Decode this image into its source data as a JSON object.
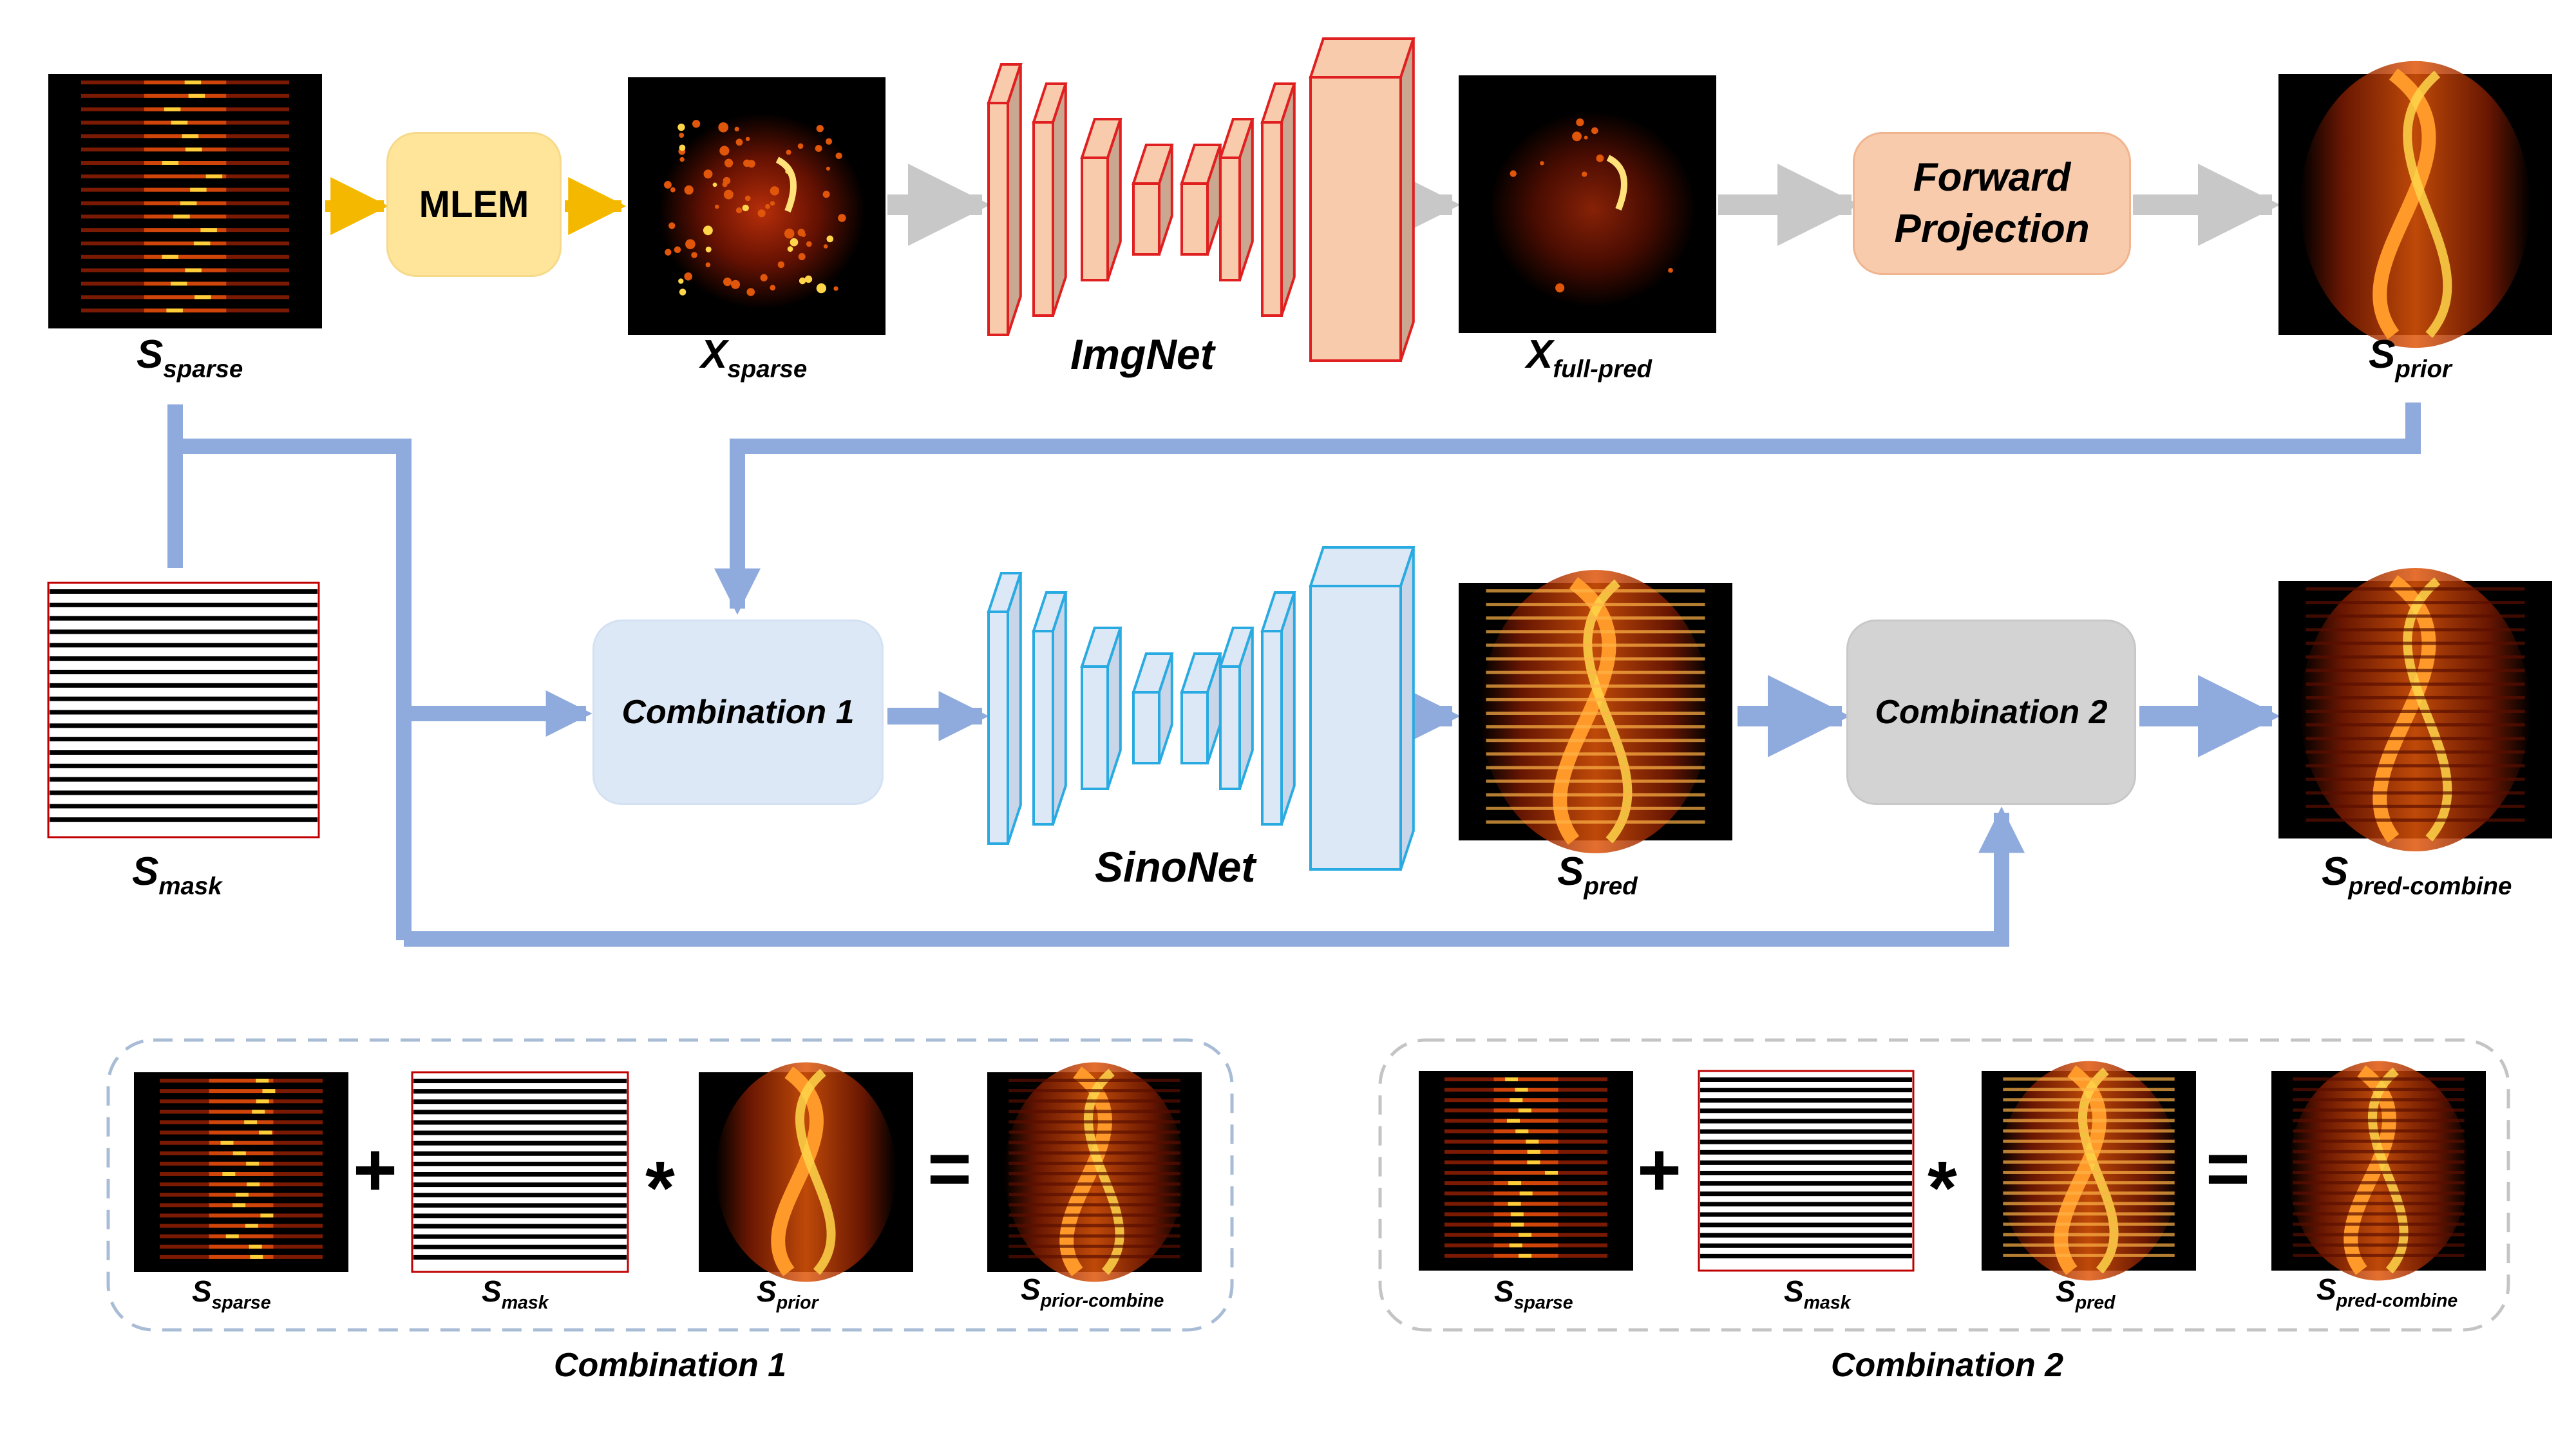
{
  "boxes": {
    "mlem": "MLEM",
    "forward_projection_line1": "Forward",
    "forward_projection_line2": "Projection",
    "combination1": "Combination 1",
    "combination2": "Combination 2"
  },
  "networks": {
    "imgnet": "ImgNet",
    "sinonet": "SinoNet"
  },
  "labels": {
    "s_sparse": {
      "base": "S",
      "sub": "sparse"
    },
    "x_sparse": {
      "base": "X",
      "sub": "sparse"
    },
    "x_full_pred": {
      "base": "X",
      "sub": "full-pred"
    },
    "s_prior": {
      "base": "S",
      "sub": "prior"
    },
    "s_mask": {
      "base": "S",
      "sub": "mask"
    },
    "s_pred": {
      "base": "S",
      "sub": "pred"
    },
    "s_pred_combine": {
      "base": "S",
      "sub": "pred-combine"
    },
    "s_prior_combine": {
      "base": "S",
      "sub": "prior-combine"
    }
  },
  "operators": {
    "plus": "+",
    "times": "*",
    "equals": "="
  },
  "panels": {
    "combination1_caption": "Combination 1",
    "combination2_caption": "Combination 2"
  },
  "colors": {
    "mlem_fill": "#ffe599",
    "forward_projection_fill": "#f8cbad",
    "combination1_fill": "#dde8f6",
    "combination2_fill": "#d3d3d3",
    "imgnet_stroke": "#e02020",
    "imgnet_face": "#f8cbad",
    "sinonet_stroke": "#29abe2",
    "sinonet_face": "#dde8f6",
    "arrow_yellow": "#f5b800",
    "arrow_gray": "#c8c8c8",
    "arrow_blue": "#8faadc"
  }
}
